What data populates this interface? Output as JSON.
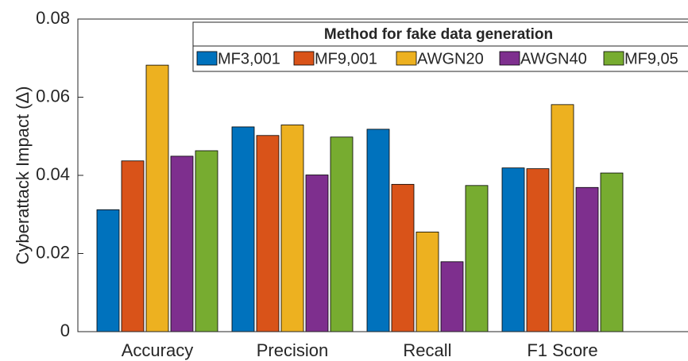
{
  "chart_data": {
    "type": "bar",
    "ylabel": "Cyberattack Impact (Δ)",
    "legend_title": "Method for fake data generation",
    "categories": [
      "Accuracy",
      "Precision",
      "Recall",
      "F1 Score"
    ],
    "series": [
      {
        "name": "MF3,001",
        "color": "#0072bd",
        "values": [
          0.0312,
          0.0524,
          0.0518,
          0.0419
        ]
      },
      {
        "name": "MF9,001",
        "color": "#d95319",
        "values": [
          0.0437,
          0.0502,
          0.0377,
          0.0417
        ]
      },
      {
        "name": "AWGN20",
        "color": "#edb120",
        "values": [
          0.0682,
          0.0529,
          0.0255,
          0.0581
        ]
      },
      {
        "name": "AWGN40",
        "color": "#7e2f8e",
        "values": [
          0.0449,
          0.0401,
          0.0179,
          0.0369
        ]
      },
      {
        "name": "MF9,05",
        "color": "#77ac30",
        "values": [
          0.0463,
          0.0498,
          0.0374,
          0.0406
        ]
      }
    ],
    "ylim": [
      0,
      0.08
    ],
    "yticks": [
      0,
      0.02,
      0.04,
      0.06,
      0.08
    ],
    "legend": "top-right"
  }
}
